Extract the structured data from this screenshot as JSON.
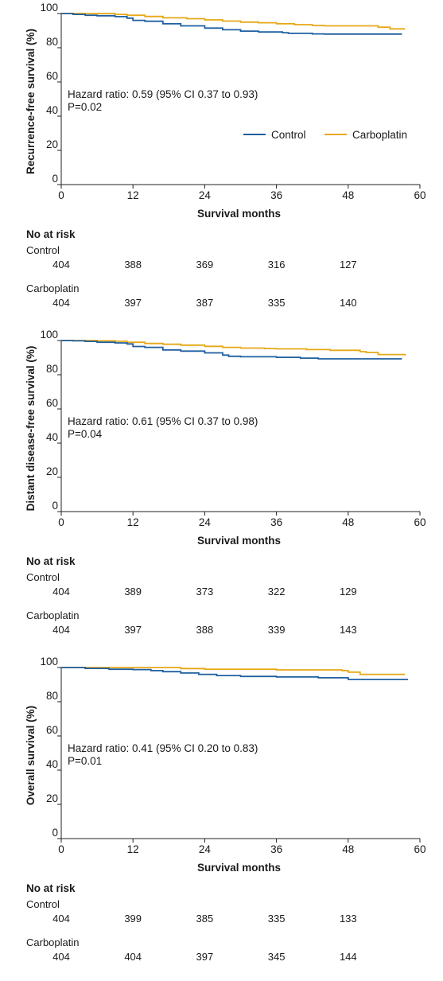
{
  "colors": {
    "control": "#1f5fa0",
    "carboplatin": "#e6a817",
    "axis": "#222222",
    "text": "#1a1a1a"
  },
  "legend": {
    "control": "Control",
    "carboplatin": "Carboplatin"
  },
  "risk_table_title": "No at risk",
  "chart_data": [
    {
      "type": "line",
      "ylabel": "Recurrence-free survival (%)",
      "xlabel": "Survival months",
      "xlim": [
        0,
        60
      ],
      "ylim": [
        0,
        100
      ],
      "xticks": [
        "0",
        "12",
        "24",
        "36",
        "48",
        "60"
      ],
      "yticks": [
        "0",
        "20",
        "40",
        "60",
        "80",
        "100"
      ],
      "annotation_line1": "Hazard ratio: 0.59 (95% CI 0.37 to 0.93)",
      "annotation_line2": "P=0.02",
      "legend_shown": true,
      "legend_position": "right",
      "series": [
        {
          "name": "Control",
          "x": [
            0,
            2,
            4,
            6,
            9,
            11,
            12,
            14,
            17,
            20,
            24,
            27,
            30,
            33,
            37,
            38,
            42,
            44,
            57
          ],
          "y": [
            100,
            99.5,
            99,
            98.7,
            98.2,
            97.3,
            96,
            95.5,
            94,
            92.8,
            91.5,
            90.5,
            89.7,
            89.2,
            88.8,
            88.4,
            88.1,
            88,
            88
          ]
        },
        {
          "name": "Carboplatin",
          "x": [
            0,
            6,
            9,
            11,
            14,
            17,
            21,
            24,
            27,
            30,
            33,
            36,
            39,
            42,
            44,
            53,
            55,
            57.5
          ],
          "y": [
            100,
            100,
            99.5,
            99,
            98.3,
            97.5,
            97,
            96.3,
            95.6,
            95,
            94.6,
            94,
            93.5,
            93,
            92.8,
            92,
            91,
            91
          ]
        }
      ],
      "at_risk": {
        "x": [
          0,
          12,
          24,
          36,
          48
        ],
        "rows": [
          {
            "label": "Control",
            "values": [
              "404",
              "388",
              "369",
              "316",
              "127"
            ]
          },
          {
            "label": "Carboplatin",
            "values": [
              "404",
              "397",
              "387",
              "335",
              "140"
            ]
          }
        ]
      }
    },
    {
      "type": "line",
      "ylabel": "Distant disease-free survival (%)",
      "xlabel": "Survival months",
      "xlim": [
        0,
        60
      ],
      "ylim": [
        0,
        100
      ],
      "xticks": [
        "0",
        "12",
        "24",
        "36",
        "48",
        "60"
      ],
      "yticks": [
        "0",
        "20",
        "40",
        "60",
        "80",
        "100"
      ],
      "annotation_line1": "Hazard ratio: 0.61 (95% CI 0.37 to 0.98)",
      "annotation_line2": "P=0.04",
      "legend_shown": false,
      "series": [
        {
          "name": "Control",
          "x": [
            0,
            2,
            4,
            6,
            9,
            11,
            12,
            14,
            17,
            20,
            24,
            27,
            28,
            30,
            36,
            40,
            43,
            57
          ],
          "y": [
            100,
            99.8,
            99.5,
            99,
            98.6,
            98,
            96.5,
            96,
            94.5,
            93.8,
            92.8,
            91.5,
            90.8,
            90.5,
            90.2,
            89.7,
            89.3,
            89.3
          ]
        },
        {
          "name": "Carboplatin",
          "x": [
            0,
            6,
            9,
            11,
            14,
            17,
            20,
            24,
            27,
            30,
            34,
            36,
            41,
            45,
            50,
            51,
            53,
            57.5
          ],
          "y": [
            100,
            99.8,
            99.6,
            99,
            98.3,
            97.8,
            97.3,
            96.6,
            96,
            95.6,
            95.3,
            95.1,
            94.7,
            94.3,
            93.5,
            93,
            91.8,
            91.2
          ]
        }
      ],
      "at_risk": {
        "x": [
          0,
          12,
          24,
          36,
          48
        ],
        "rows": [
          {
            "label": "Control",
            "values": [
              "404",
              "389",
              "373",
              "322",
              "129"
            ]
          },
          {
            "label": "Carboplatin",
            "values": [
              "404",
              "397",
              "388",
              "339",
              "143"
            ]
          }
        ]
      }
    },
    {
      "type": "line",
      "ylabel": "Overall survival (%)",
      "xlabel": "Survival months",
      "xlim": [
        0,
        60
      ],
      "ylim": [
        0,
        100
      ],
      "xticks": [
        "0",
        "12",
        "24",
        "36",
        "48",
        "60"
      ],
      "yticks": [
        "0",
        "20",
        "40",
        "60",
        "80",
        "100"
      ],
      "annotation_line1": "Hazard ratio: 0.41 (95% CI 0.20 to 0.83)",
      "annotation_line2": "P=0.01",
      "legend_shown": false,
      "series": [
        {
          "name": "Control",
          "x": [
            0,
            4,
            8,
            12,
            15,
            17,
            20,
            23,
            26,
            30,
            36,
            43,
            48,
            58
          ],
          "y": [
            100,
            99.5,
            99,
            98.8,
            98.2,
            97.6,
            96.8,
            96,
            95.3,
            94.8,
            94.5,
            94,
            93,
            93
          ]
        },
        {
          "name": "Carboplatin",
          "x": [
            0,
            12,
            20,
            24,
            36,
            47,
            48,
            50,
            57.5
          ],
          "y": [
            100,
            100,
            99.4,
            99,
            98.6,
            98.2,
            97.3,
            96,
            96
          ]
        }
      ],
      "at_risk": {
        "x": [
          0,
          12,
          24,
          36,
          48
        ],
        "rows": [
          {
            "label": "Control",
            "values": [
              "404",
              "399",
              "385",
              "335",
              "133"
            ]
          },
          {
            "label": "Carboplatin",
            "values": [
              "404",
              "404",
              "397",
              "345",
              "144"
            ]
          }
        ]
      }
    }
  ]
}
